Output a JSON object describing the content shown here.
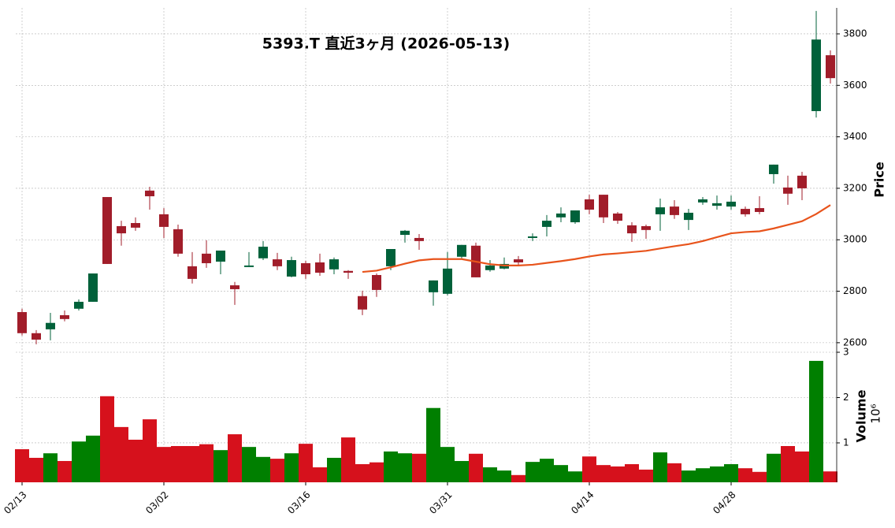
{
  "chart_data": {
    "type": "candlestick",
    "title": "5393.T 直近3ヶ月 (2026-05-13)",
    "x": [
      "02/13",
      "02/16",
      "02/17",
      "02/18",
      "02/19",
      "02/20",
      "02/24",
      "02/25",
      "02/26",
      "02/27",
      "03/02",
      "03/03",
      "03/04",
      "03/05",
      "03/06",
      "03/09",
      "03/10",
      "03/11",
      "03/12",
      "03/13",
      "03/16",
      "03/17",
      "03/18",
      "03/19",
      "03/23",
      "03/24",
      "03/25",
      "03/26",
      "03/27",
      "03/30",
      "03/31",
      "04/01",
      "04/02",
      "04/03",
      "04/06",
      "04/07",
      "04/08",
      "04/09",
      "04/10",
      "04/13",
      "04/14",
      "04/15",
      "04/16",
      "04/17",
      "04/20",
      "04/21",
      "04/22",
      "04/23",
      "04/24",
      "04/27",
      "04/28",
      "04/30",
      "05/01",
      "05/07",
      "05/08",
      "05/11",
      "05/12",
      "05/13"
    ],
    "xticks": [
      "02/13",
      "03/02",
      "03/16",
      "03/31",
      "04/14",
      "04/28"
    ],
    "open": [
      2719,
      2637,
      2652,
      2707,
      2732,
      2759,
      3166,
      3053,
      3065,
      3191,
      3099,
      3041,
      2897,
      2946,
      2915,
      2823,
      2894,
      2928,
      2924,
      2857,
      2909,
      2912,
      2885,
      2879,
      2781,
      2863,
      2897,
      3019,
      3007,
      2796,
      2790,
      2934,
      2977,
      2882,
      2888,
      2924,
      3007,
      3050,
      3087,
      3068,
      3157,
      3175,
      3102,
      3056,
      3053,
      3099,
      3129,
      3077,
      3145,
      3132,
      3129,
      3120,
      3123,
      3255,
      3203,
      3249,
      3500,
      3717
    ],
    "high": [
      2732,
      2649,
      2716,
      2725,
      2768,
      2869,
      3166,
      3074,
      3087,
      3206,
      3123,
      3059,
      2952,
      2998,
      2958,
      2836,
      2952,
      2995,
      2949,
      2934,
      2918,
      2946,
      2931,
      2882,
      2802,
      2869,
      2964,
      3038,
      3022,
      2842,
      2952,
      2980,
      2989,
      2921,
      2931,
      2937,
      3025,
      3096,
      3126,
      3114,
      3175,
      3175,
      3108,
      3068,
      3059,
      3160,
      3154,
      3120,
      3166,
      3172,
      3172,
      3129,
      3169,
      3292,
      3249,
      3264,
      3889,
      3736
    ],
    "low": [
      2628,
      2594,
      2609,
      2683,
      2725,
      2759,
      2906,
      2977,
      3035,
      3117,
      3007,
      2934,
      2830,
      2891,
      2866,
      2747,
      2894,
      2921,
      2882,
      2854,
      2848,
      2860,
      2866,
      2848,
      2707,
      2778,
      2882,
      2989,
      2961,
      2744,
      2784,
      2928,
      2854,
      2876,
      2885,
      2897,
      2995,
      3013,
      3068,
      3062,
      3099,
      3065,
      3062,
      2992,
      3004,
      3035,
      3081,
      3038,
      3136,
      3117,
      3117,
      3090,
      3099,
      3218,
      3136,
      3154,
      3475,
      3607
    ],
    "close": [
      2637,
      2612,
      2677,
      2692,
      2759,
      2869,
      2906,
      3025,
      3047,
      3169,
      3050,
      2946,
      2848,
      2909,
      2958,
      2808,
      2900,
      2973,
      2897,
      2921,
      2866,
      2872,
      2924,
      2872,
      2729,
      2805,
      2964,
      3035,
      2995,
      2842,
      2888,
      2980,
      2854,
      2900,
      2906,
      2912,
      3013,
      3074,
      3102,
      3114,
      3117,
      3087,
      3074,
      3025,
      3038,
      3126,
      3096,
      3105,
      3157,
      3142,
      3148,
      3099,
      3108,
      3292,
      3179,
      3200,
      3778,
      3628
    ],
    "up_color": "#00613a",
    "down_color": "#a11d2a",
    "ylim": [
      2569,
      3901
    ],
    "yticks": [
      2600,
      2800,
      3000,
      3200,
      3400,
      3600,
      3800
    ],
    "ylabel": "Price",
    "grid": true,
    "moving_average": {
      "color": "#e8541c",
      "values": [
        null,
        null,
        null,
        null,
        null,
        null,
        null,
        null,
        null,
        null,
        null,
        null,
        null,
        null,
        null,
        null,
        null,
        null,
        null,
        null,
        null,
        null,
        null,
        null,
        2875,
        2880,
        2893,
        2907,
        2920,
        2925,
        2925,
        2925,
        2915,
        2905,
        2900,
        2900,
        2903,
        2910,
        2917,
        2925,
        2935,
        2943,
        2947,
        2952,
        2957,
        2966,
        2975,
        2983,
        2995,
        3010,
        3025,
        3030,
        3033,
        3044,
        3058,
        3072,
        3100,
        3135
      ]
    },
    "volume": {
      "values": [
        0.86,
        0.67,
        0.77,
        0.6,
        1.03,
        1.16,
        2.03,
        1.35,
        1.07,
        1.52,
        0.91,
        0.93,
        0.93,
        0.97,
        0.84,
        1.19,
        0.91,
        0.69,
        0.65,
        0.77,
        0.98,
        0.46,
        0.67,
        1.12,
        0.53,
        0.57,
        0.81,
        0.77,
        0.76,
        1.77,
        0.91,
        0.6,
        0.76,
        0.46,
        0.39,
        0.29,
        0.58,
        0.65,
        0.51,
        0.37,
        0.7,
        0.51,
        0.48,
        0.53,
        0.41,
        0.79,
        0.55,
        0.39,
        0.44,
        0.48,
        0.53,
        0.44,
        0.36,
        0.76,
        0.93,
        0.81,
        2.81,
        0.37
      ],
      "ylim": [
        0.13,
        3
      ],
      "yticks": [
        1,
        2,
        3
      ],
      "ylabel": "Volume",
      "scale_label": "10⁶",
      "up_color": "#007f00",
      "down_color": "#d6111c"
    }
  }
}
